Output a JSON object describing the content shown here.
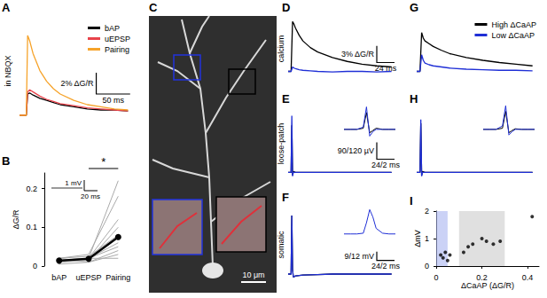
{
  "chart_data": [
    {
      "panel": "A",
      "type": "line",
      "tick_labels": false,
      "annotations": [
        "in NBQX"
      ],
      "legend": "top-right",
      "x": [
        0,
        5,
        10,
        12,
        15,
        20,
        30,
        40,
        50,
        60,
        80,
        100,
        120,
        140,
        160
      ],
      "xlim": [
        0,
        170
      ],
      "ylim": [
        -1,
        9
      ],
      "series": [
        {
          "name": "bAP",
          "color": "#000000",
          "values": [
            0,
            0,
            0,
            2,
            2.1,
            1.9,
            1.6,
            1.4,
            1.2,
            1.0,
            0.8,
            0.6,
            0.5,
            0.5,
            0.4
          ]
        },
        {
          "name": "uEPSP",
          "color": "#e8434b",
          "values": [
            0,
            0,
            0,
            2.2,
            2.4,
            2.2,
            1.8,
            1.5,
            1.3,
            1.1,
            0.9,
            0.7,
            0.6,
            0.5,
            0.4
          ]
        },
        {
          "name": "Pairing",
          "color": "#f6a32a",
          "values": [
            0,
            0,
            0,
            7.5,
            7,
            5.8,
            4.2,
            3.2,
            2.5,
            2,
            1.4,
            1,
            0.8,
            0.6,
            0.5
          ]
        }
      ],
      "scalebar": {
        "x": 50,
        "y": 2,
        "x_label": "50 ms",
        "y_label": "2% ΔG/R"
      }
    },
    {
      "panel": "B",
      "type": "line",
      "categories": [
        "bAP",
        "uEPSP",
        "Pairing"
      ],
      "ylabel": "ΔG/R",
      "ylim": [
        0,
        0.24
      ],
      "yticks": [
        0,
        0.1,
        0.2
      ],
      "significance": {
        "between": [
          "uEPSP",
          "Pairing"
        ],
        "label": "*"
      },
      "annotations": [
        "1 mV",
        "20 ms"
      ],
      "series": [
        {
          "color": "#aaaaaa",
          "values": [
            0.01,
            0.02,
            0.22
          ]
        },
        {
          "color": "#aaaaaa",
          "values": [
            0.02,
            0.03,
            0.18
          ]
        },
        {
          "color": "#aaaaaa",
          "values": [
            0.015,
            0.02,
            0.12
          ]
        },
        {
          "color": "#aaaaaa",
          "values": [
            0.01,
            0.015,
            0.1
          ]
        },
        {
          "color": "#aaaaaa",
          "values": [
            0.02,
            0.025,
            0.08
          ]
        },
        {
          "color": "#aaaaaa",
          "values": [
            0.01,
            0.02,
            0.06
          ]
        },
        {
          "color": "#aaaaaa",
          "values": [
            0.02,
            0.01,
            0.04
          ]
        },
        {
          "color": "#aaaaaa",
          "values": [
            0.005,
            0.01,
            0.03
          ]
        },
        {
          "color": "#aaaaaa",
          "values": [
            0.01,
            0.02,
            0.02
          ]
        },
        {
          "color": "#aaaaaa",
          "values": [
            0.015,
            0.02,
            0.05
          ]
        },
        {
          "color": "#000000",
          "marker": "circle",
          "values": [
            0.014,
            0.019,
            0.075
          ]
        }
      ]
    },
    {
      "panel": "C",
      "type": "image",
      "scale_label": "10 μm"
    },
    {
      "panel": "D",
      "type": "line",
      "tick_labels": false,
      "annotations": [
        "calcium"
      ],
      "x": [
        0,
        4,
        6,
        8,
        10,
        15,
        20,
        30,
        40,
        60,
        80,
        100,
        120,
        140
      ],
      "xlim": [
        0,
        150
      ],
      "ylim": [
        -2,
        10
      ],
      "series": [
        {
          "color": "#000000",
          "values": [
            0,
            0,
            9,
            8.5,
            7.8,
            6.5,
            5.5,
            4.3,
            3.5,
            2.5,
            1.8,
            1.3,
            1.0,
            0.8
          ]
        },
        {
          "color": "#1f2fd6",
          "values": [
            0,
            0,
            0.8,
            0.6,
            0.5,
            0.3,
            0.2,
            0.1,
            0,
            -0.1,
            0,
            0,
            -0.1,
            0
          ]
        }
      ],
      "scalebar": {
        "x": 24,
        "y": 3,
        "x_label": "24 ms",
        "y_label": "3% ΔG/R"
      }
    },
    {
      "panel": "E",
      "type": "line",
      "tick_labels": false,
      "annotations": [
        "loose-patch"
      ],
      "x": [
        0,
        4,
        5,
        6,
        7,
        10,
        20,
        40,
        60,
        80,
        100,
        120,
        140
      ],
      "xlim": [
        0,
        150
      ],
      "ylim": [
        -50,
        350
      ],
      "series": [
        {
          "color": "#000000",
          "values": [
            0,
            0,
            250,
            -15,
            5,
            0,
            0,
            0,
            0,
            0,
            0,
            0,
            0
          ]
        },
        {
          "color": "#1f2fd6",
          "values": [
            0,
            0,
            300,
            -20,
            0,
            0,
            0,
            0,
            0,
            0,
            0,
            0,
            0
          ]
        }
      ],
      "scalebar": {
        "x": 24,
        "y": 90,
        "x_label": "24/2 ms",
        "y_label": "90/120 µV"
      },
      "inset": {
        "x": [
          0,
          1,
          2,
          3,
          3.5,
          4,
          4.5,
          5,
          6,
          7,
          8
        ],
        "xlim": [
          0,
          8
        ],
        "ylim": [
          -80,
          220
        ],
        "series": [
          {
            "color": "#000000",
            "values": [
              0,
              0,
              0,
              10,
              150,
              -30,
              -10,
              10,
              0,
              0,
              0
            ]
          },
          {
            "color": "#1f2fd6",
            "values": [
              0,
              0,
              0,
              20,
              200,
              -60,
              -20,
              0,
              0,
              0,
              0
            ]
          }
        ]
      }
    },
    {
      "panel": "F",
      "type": "line",
      "tick_labels": false,
      "annotations": [
        "somatic"
      ],
      "x": [
        0,
        4,
        5,
        6,
        7,
        10,
        20,
        40,
        60,
        80,
        100,
        120,
        140
      ],
      "xlim": [
        0,
        150
      ],
      "ylim": [
        -10,
        70
      ],
      "series": [
        {
          "color": "#000000",
          "values": [
            0,
            0,
            60,
            5,
            -3,
            -2,
            -1,
            -0.5,
            0,
            0,
            0,
            0,
            0
          ]
        },
        {
          "color": "#1f2fd6",
          "values": [
            0,
            0,
            60,
            5,
            -3,
            -2,
            -1,
            -0.5,
            0,
            0,
            0,
            0,
            0
          ]
        }
      ],
      "scalebar": {
        "x": 24,
        "y": 9,
        "x_label": "24/2 ms",
        "y_label": "9/12 mV"
      },
      "inset": {
        "x": [
          0,
          1,
          2,
          3,
          3.5,
          4,
          4.5,
          5,
          6,
          7,
          8
        ],
        "xlim": [
          0,
          8
        ],
        "ylim": [
          -10,
          80
        ],
        "series": [
          {
            "color": "#1f2fd6",
            "values": [
              0,
              0,
              0,
              2,
              30,
              65,
              45,
              15,
              2,
              0,
              0
            ]
          }
        ]
      }
    },
    {
      "panel": "G",
      "type": "line",
      "tick_labels": false,
      "legend": "top-right",
      "x": [
        0,
        4,
        6,
        8,
        10,
        15,
        20,
        30,
        40,
        60,
        80,
        100,
        120,
        140
      ],
      "xlim": [
        0,
        150
      ],
      "ylim": [
        -2,
        10
      ],
      "series": [
        {
          "name": "High ΔCaAP",
          "color": "#000000",
          "values": [
            0,
            0,
            7,
            6,
            5.5,
            5,
            4.5,
            3.8,
            3.2,
            2.5,
            2,
            1.6,
            1.3,
            1.0
          ]
        },
        {
          "name": "Low ΔCaAP",
          "color": "#1f2fd6",
          "values": [
            0,
            0,
            3,
            2,
            1.5,
            1.2,
            1,
            0.8,
            0.6,
            0.4,
            0.3,
            0.2,
            0.2,
            0.1
          ]
        }
      ]
    },
    {
      "panel": "H",
      "type": "line",
      "tick_labels": false,
      "x": [
        0,
        4,
        5,
        6,
        7,
        10,
        20,
        40,
        60,
        80,
        100,
        120,
        140
      ],
      "xlim": [
        0,
        150
      ],
      "ylim": [
        -50,
        350
      ],
      "series": [
        {
          "color": "#000000",
          "values": [
            0,
            0,
            260,
            -15,
            5,
            0,
            0,
            0,
            0,
            0,
            0,
            0,
            0
          ]
        },
        {
          "color": "#1f2fd6",
          "values": [
            0,
            0,
            280,
            -20,
            0,
            0,
            0,
            0,
            0,
            0,
            0,
            0,
            0
          ]
        }
      ],
      "inset": {
        "x": [
          0,
          1,
          2,
          3,
          3.5,
          4,
          4.5,
          5,
          6,
          7,
          8
        ],
        "xlim": [
          0,
          8
        ],
        "ylim": [
          -80,
          220
        ],
        "series": [
          {
            "color": "#000000",
            "values": [
              0,
              0,
              0,
              10,
              160,
              -30,
              -10,
              5,
              0,
              0,
              0
            ]
          },
          {
            "color": "#1f2fd6",
            "values": [
              0,
              0,
              0,
              30,
              210,
              -50,
              -20,
              0,
              0,
              0,
              0
            ]
          }
        ]
      }
    },
    {
      "panel": "I",
      "type": "scatter",
      "xlabel": "ΔCaAP (ΔG/R)",
      "ylabel": "ΔmV",
      "xlim": [
        0,
        0.45
      ],
      "xticks": [
        0,
        0.2,
        0.4
      ],
      "ylim": [
        0,
        2
      ],
      "yticks": [
        0,
        1,
        2
      ],
      "color": "#000000",
      "regions": [
        {
          "range": [
            0,
            0.05
          ],
          "color": "#a9b4f0"
        },
        {
          "range": [
            0.1,
            0.3
          ],
          "color": "#cccccc"
        }
      ],
      "x": [
        0.02,
        0.03,
        0.04,
        0.05,
        0.06,
        0.12,
        0.14,
        0.16,
        0.2,
        0.22,
        0.25,
        0.28,
        0.42
      ],
      "values": [
        0.4,
        0.3,
        0.5,
        0.2,
        0.4,
        0.5,
        0.7,
        0.8,
        1.0,
        0.9,
        0.8,
        0.9,
        1.8
      ]
    }
  ]
}
